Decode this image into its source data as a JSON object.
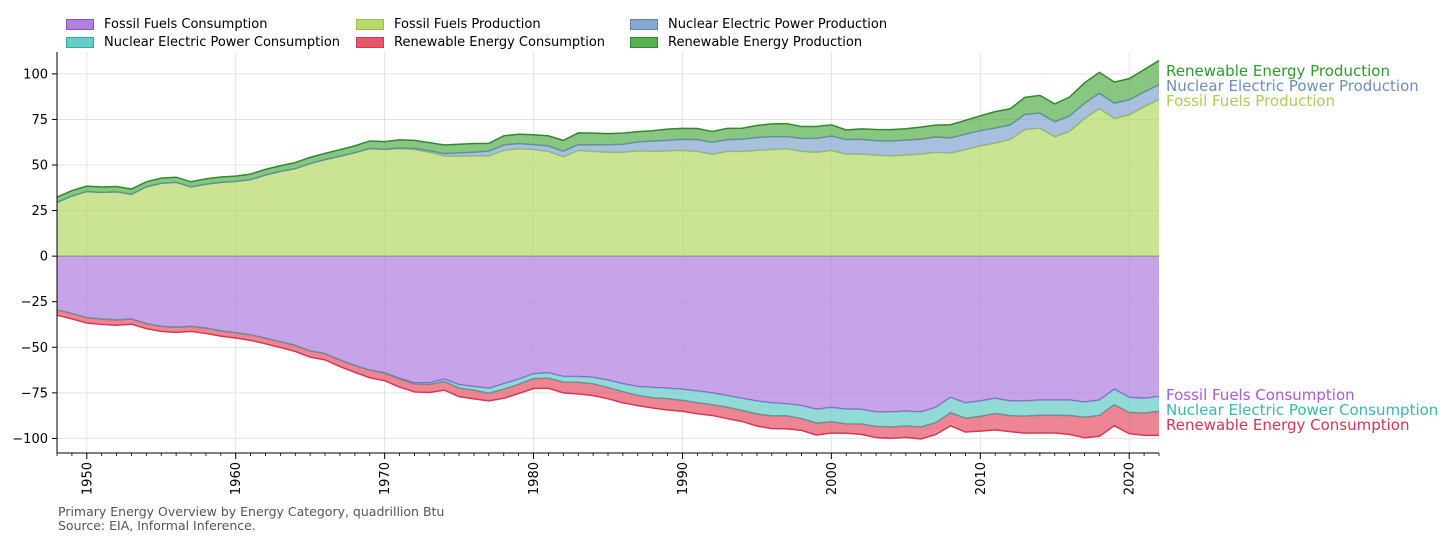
{
  "chart_data": {
    "type": "area",
    "title": "Primary Energy Overview by Energy Category, quadrillion Btu",
    "source": "Source: EIA, Informal Inference.",
    "xlim": [
      1948,
      2022
    ],
    "ylim": [
      -108,
      112
    ],
    "xticks": [
      1950,
      1960,
      1970,
      1980,
      1990,
      2000,
      2010,
      2020
    ],
    "yticks": [
      100,
      75,
      50,
      25,
      0,
      -25,
      -50,
      -75,
      -100
    ],
    "grid": true,
    "legend_position": "top-left",
    "years": [
      1948,
      1949,
      1950,
      1951,
      1952,
      1953,
      1954,
      1955,
      1956,
      1957,
      1958,
      1959,
      1960,
      1961,
      1962,
      1963,
      1964,
      1965,
      1966,
      1967,
      1968,
      1969,
      1970,
      1971,
      1972,
      1973,
      1974,
      1975,
      1976,
      1977,
      1978,
      1979,
      1980,
      1981,
      1982,
      1983,
      1984,
      1985,
      1986,
      1987,
      1988,
      1989,
      1990,
      1991,
      1992,
      1993,
      1994,
      1995,
      1996,
      1997,
      1998,
      1999,
      2000,
      2001,
      2002,
      2003,
      2004,
      2005,
      2006,
      2007,
      2008,
      2009,
      2010,
      2011,
      2012,
      2013,
      2014,
      2015,
      2016,
      2017,
      2018,
      2019,
      2020,
      2021,
      2022
    ],
    "production": [
      {
        "name": "Fossil Fuels Production",
        "color": "#b5d96b",
        "values": [
          29.5,
          33,
          35.5,
          35,
          35.3,
          34,
          38,
          40,
          40.5,
          38,
          39.5,
          40.5,
          41,
          42,
          44.5,
          46.5,
          48,
          50.8,
          53,
          54.8,
          56.8,
          59,
          58.5,
          59,
          58.5,
          57,
          55,
          54.8,
          55,
          55,
          58,
          59,
          58.5,
          57.5,
          54.5,
          58,
          57.5,
          57,
          57,
          57.8,
          57.5,
          57.8,
          58,
          57.5,
          56,
          57.5,
          57.5,
          58,
          58.5,
          59,
          57.5,
          57,
          58,
          56,
          56,
          55.5,
          55,
          55.5,
          56,
          57,
          56.5,
          58.5,
          60.5,
          62,
          64,
          69.5,
          70.2,
          65.5,
          68.5,
          75.5,
          81,
          75.5,
          77.5,
          82,
          86
        ]
      },
      {
        "name": "Nuclear Electric Power Production",
        "color": "#87a8d1",
        "values": [
          0,
          0,
          0,
          0,
          0,
          0,
          0,
          0,
          0,
          0,
          0,
          0,
          0,
          0,
          0,
          0,
          0,
          0,
          0,
          0,
          0,
          0.1,
          0.2,
          0.4,
          0.6,
          0.9,
          1.3,
          1.9,
          2.1,
          2.7,
          3,
          2.8,
          2.7,
          3,
          3.1,
          3.2,
          3.6,
          4.1,
          4.4,
          4.9,
          5.7,
          5.7,
          6.1,
          6.4,
          6.5,
          6.4,
          6.7,
          7.1,
          7.1,
          6.6,
          7.1,
          7.6,
          7.9,
          8,
          8.1,
          7.9,
          8.2,
          8.2,
          8.2,
          8.4,
          8.4,
          8.4,
          8.4,
          8.3,
          8,
          8.3,
          8.3,
          8.3,
          8.4,
          8.4,
          8.4,
          8.5,
          8.3,
          8.1,
          8.1
        ]
      },
      {
        "name": "Renewable Energy Production",
        "color": "#5bb052",
        "values": [
          2.9,
          2.9,
          2.9,
          2.9,
          2.9,
          2.8,
          2.8,
          2.8,
          2.8,
          2.8,
          2.9,
          2.9,
          2.9,
          3,
          3.1,
          3.1,
          3.3,
          3.4,
          3.4,
          3.6,
          3.7,
          4.1,
          4.1,
          4.4,
          4.4,
          4.4,
          4.7,
          4.7,
          4.7,
          4.2,
          5,
          5.1,
          5.4,
          5.5,
          5.9,
          6.4,
          6.4,
          6.1,
          6.1,
          5.6,
          5.6,
          6.2,
          6,
          6.1,
          5.9,
          6.2,
          6,
          6.6,
          7,
          7.1,
          6.5,
          6.5,
          6.1,
          5.2,
          5.7,
          6.1,
          6.2,
          6.2,
          6.6,
          6.5,
          7.2,
          7.6,
          8.1,
          9,
          8.8,
          9.3,
          9.7,
          9.7,
          10.4,
          11.2,
          11.4,
          11.5,
          11.6,
          12.2,
          13.2
        ]
      }
    ],
    "consumption": [
      {
        "name": "Fossil Fuels Consumption",
        "color": "#b27fe0",
        "values": [
          29.5,
          31.5,
          33.8,
          34.5,
          35,
          34.5,
          37,
          38.5,
          39,
          38.5,
          39.5,
          41,
          42,
          43.2,
          45,
          47,
          49,
          52,
          53.5,
          57,
          60,
          62.5,
          64,
          67,
          69.5,
          69.5,
          67.5,
          70.5,
          71.5,
          72.5,
          70,
          67.5,
          64.5,
          64,
          66,
          66,
          66.5,
          68,
          70,
          71.5,
          72,
          72.5,
          73,
          74,
          75,
          76.5,
          78,
          79.5,
          80.5,
          81,
          82,
          84,
          83,
          84,
          84,
          85.5,
          85.5,
          85,
          85.5,
          83,
          77.5,
          80.5,
          79.5,
          78,
          79.5,
          79.5,
          79,
          79,
          79,
          80,
          79,
          73,
          77.5,
          78,
          77
        ]
      },
      {
        "name": "Nuclear Electric Power Consumption",
        "color": "#66ccc6",
        "values": [
          0,
          0,
          0,
          0,
          0,
          0,
          0,
          0,
          0,
          0,
          0,
          0,
          0,
          0,
          0,
          0,
          0,
          0,
          0,
          0,
          0,
          0.1,
          0.2,
          0.4,
          0.6,
          0.9,
          1.3,
          1.9,
          2.1,
          2.7,
          3,
          2.8,
          2.7,
          3,
          3.1,
          3.2,
          3.6,
          4.1,
          4.4,
          4.9,
          5.7,
          5.7,
          6.1,
          6.4,
          6.5,
          6.4,
          6.7,
          7.1,
          7.1,
          6.6,
          7.1,
          7.6,
          7.9,
          8,
          8.1,
          7.9,
          8.2,
          8.2,
          8.2,
          8.4,
          8.4,
          8.4,
          8.4,
          8.3,
          8,
          8.3,
          8.3,
          8.3,
          8.4,
          8.4,
          8.4,
          8.5,
          8.3,
          8.1,
          8.1
        ]
      },
      {
        "name": "Renewable Energy Consumption",
        "color": "#e8566c",
        "values": [
          2.9,
          2.9,
          2.9,
          2.9,
          2.9,
          2.8,
          2.8,
          2.8,
          2.8,
          2.8,
          2.9,
          2.9,
          2.9,
          3,
          3.1,
          3.1,
          3.3,
          3.4,
          3.4,
          3.6,
          3.7,
          4.1,
          4.1,
          4.4,
          4.4,
          4.4,
          4.7,
          4.7,
          4.7,
          4.2,
          5,
          5.1,
          5.4,
          5.5,
          5.9,
          6.4,
          6.4,
          6.1,
          6.1,
          5.6,
          5.6,
          6.2,
          6,
          6.1,
          5.9,
          6.2,
          6,
          6.6,
          7,
          7.1,
          6.5,
          6.5,
          6.1,
          5.2,
          5.7,
          6.1,
          6.2,
          6.2,
          6.6,
          6.5,
          7.2,
          7.6,
          8.1,
          9,
          8.8,
          9.3,
          9.7,
          9.7,
          10.4,
          11.2,
          11.4,
          11.5,
          11.6,
          12.2,
          13.2
        ]
      }
    ],
    "legend": [
      {
        "label": "Fossil Fuels Consumption",
        "color": "#b27fe0",
        "edge": "#8a55c9"
      },
      {
        "label": "Nuclear Electric Power Consumption",
        "color": "#66ccc6",
        "edge": "#3aa9a2"
      },
      {
        "label": "Fossil Fuels Production",
        "color": "#b5d96b",
        "edge": "#93c24a"
      },
      {
        "label": "Renewable Energy Consumption",
        "color": "#e8566c",
        "edge": "#d53852"
      },
      {
        "label": "Nuclear Electric Power Production",
        "color": "#87a8d1",
        "edge": "#5f86b8"
      },
      {
        "label": "Renewable Energy Production",
        "color": "#5bb052",
        "edge": "#2f8a2c"
      }
    ],
    "end_labels": [
      {
        "label": "Renewable Energy Production",
        "color": "#2f9a2c"
      },
      {
        "label": "Nuclear Electric Power Production",
        "color": "#6b8fc2"
      },
      {
        "label": "Fossil Fuels Production",
        "color": "#a7cf55"
      },
      {
        "label": "Fossil Fuels Consumption",
        "color": "#a85bd6"
      },
      {
        "label": "Nuclear Electric Power Consumption",
        "color": "#3ab7b0"
      },
      {
        "label": "Renewable Energy Consumption",
        "color": "#d93355"
      }
    ]
  }
}
